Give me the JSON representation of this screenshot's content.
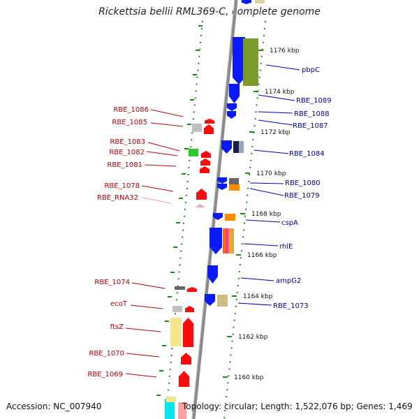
{
  "title": "Rickettsia bellii RML369-C, complete genome",
  "footer": {
    "accession": "Accession: NC_007940",
    "topology": "Topology: circular; Length: 1,522,076 bp; Genes: 1,469"
  },
  "colors": {
    "forward_gene": "#0a1aff",
    "reverse_gene": "#ff0a0a",
    "left_label": "#b3000a",
    "right_label": "#0000b0",
    "rna_label": "#f09bc8",
    "ruler_dots": "#1a8a1a",
    "backbone": "#888888"
  },
  "ticks": [
    "1176 kbp",
    "1174 kbp",
    "1172 kbp",
    "1170 kbp",
    "1168 kbp",
    "1166 kbp",
    "1164 kbp",
    "1162 kbp",
    "1160 kbp"
  ],
  "left_labels": [
    {
      "text": "RBE_1086",
      "rna": false
    },
    {
      "text": "RBE_1085",
      "rna": false
    },
    {
      "text": "RBE_1083",
      "rna": false
    },
    {
      "text": "RBE_1082",
      "rna": false
    },
    {
      "text": "RBE_1081",
      "rna": false
    },
    {
      "text": "RBE_1078",
      "rna": false
    },
    {
      "text": "RBE_RNA32",
      "rna": true
    },
    {
      "text": "RBE_1074",
      "rna": false
    },
    {
      "text": "ecoT",
      "rna": false
    },
    {
      "text": "ftsZ",
      "rna": false
    },
    {
      "text": "RBE_1070",
      "rna": false
    },
    {
      "text": "RBE_1069",
      "rna": false
    }
  ],
  "right_labels": [
    {
      "text": "pbpC"
    },
    {
      "text": "RBE_1089"
    },
    {
      "text": "RBE_1088"
    },
    {
      "text": "RBE_1087"
    },
    {
      "text": "RBE_1084"
    },
    {
      "text": "RBE_1080"
    },
    {
      "text": "RBE_1079"
    },
    {
      "text": "cspA"
    },
    {
      "text": "rhlE"
    },
    {
      "text": "ampG2"
    },
    {
      "text": "RBE_1073"
    }
  ]
}
